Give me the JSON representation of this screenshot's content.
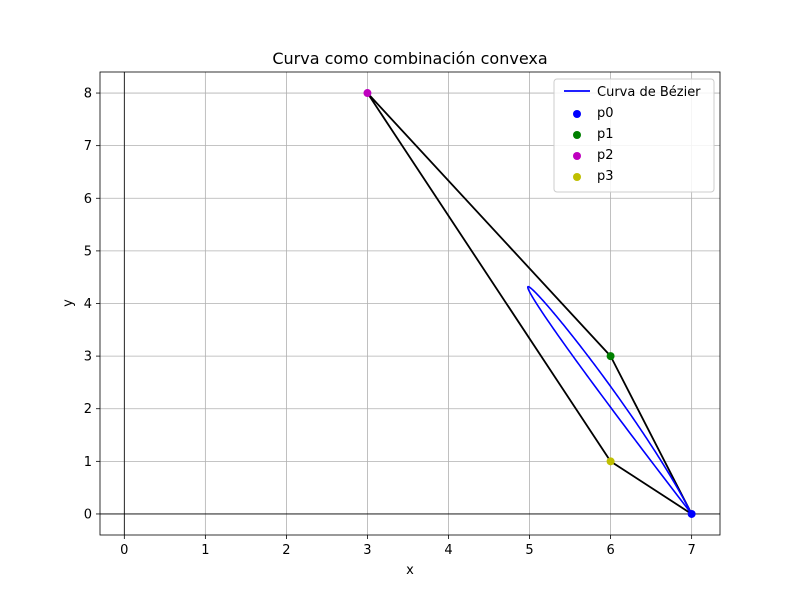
{
  "chart_data": {
    "type": "line",
    "title": "Curva como combinación convexa",
    "xlabel": "x",
    "ylabel": "y",
    "xlim": [
      -0.3,
      7.35
    ],
    "ylim": [
      -0.4,
      8.4
    ],
    "xticks": [
      0,
      1,
      2,
      3,
      4,
      5,
      6,
      7
    ],
    "yticks": [
      0,
      1,
      2,
      3,
      4,
      5,
      6,
      7,
      8
    ],
    "grid": true,
    "zero_axes": true,
    "legend_position": "top-right",
    "control_points": [
      {
        "name": "p0",
        "x": 7,
        "y": 0,
        "color": "#0000ff"
      },
      {
        "name": "p1",
        "x": 6,
        "y": 3,
        "color": "#008000"
      },
      {
        "name": "p2",
        "x": 3,
        "y": 8,
        "color": "#bf00bf"
      },
      {
        "name": "p3",
        "x": 6,
        "y": 1,
        "color": "#bfbf00"
      }
    ],
    "hull": {
      "color": "#000000",
      "order": [
        "p0",
        "p1",
        "p2",
        "p3",
        "p0"
      ]
    },
    "curve": {
      "name": "Curva de Bézier",
      "color": "#0000ff",
      "closed": true,
      "control_points": [
        [
          7,
          0
        ],
        [
          3,
          8
        ],
        [
          6,
          3
        ],
        [
          7,
          0
        ]
      ]
    },
    "legend": [
      {
        "label": "Curva de Bézier",
        "kind": "line",
        "color": "#0000ff"
      },
      {
        "label": "p0",
        "kind": "marker",
        "color": "#0000ff"
      },
      {
        "label": "p1",
        "kind": "marker",
        "color": "#008000"
      },
      {
        "label": "p2",
        "kind": "marker",
        "color": "#bf00bf"
      },
      {
        "label": "p3",
        "kind": "marker",
        "color": "#bfbf00"
      }
    ]
  }
}
